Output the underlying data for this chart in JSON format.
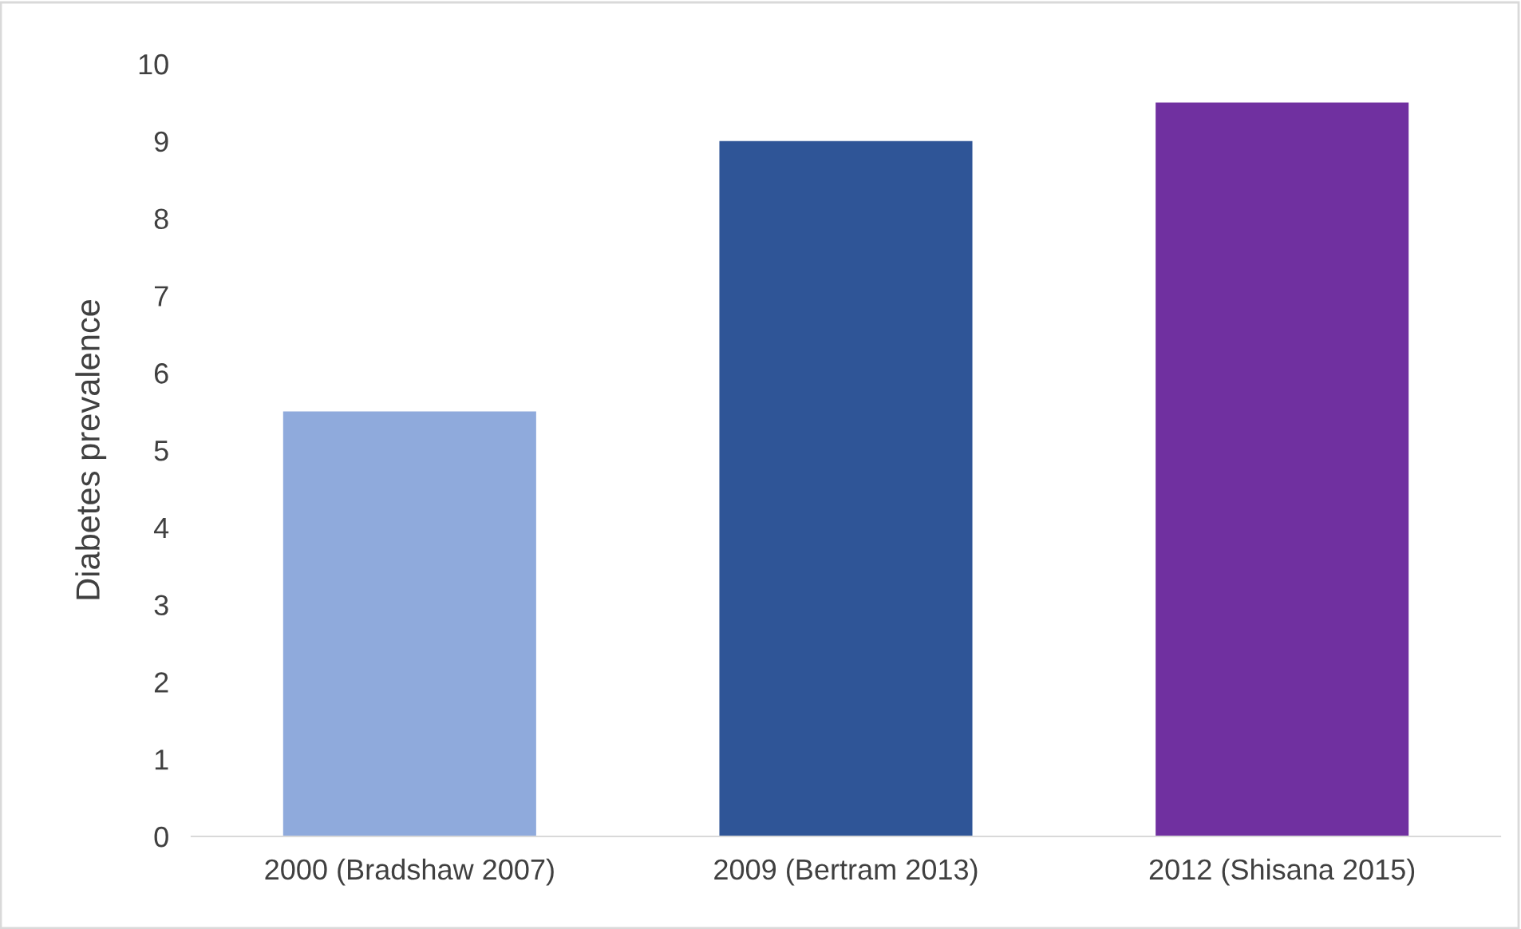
{
  "chart_data": {
    "type": "bar",
    "ylabel": "Diabetes prevalence",
    "categories": [
      "2000 (Bradshaw 2007)",
      "2009 (Bertram 2013)",
      "2012 (Shisana 2015)"
    ],
    "values": [
      5.5,
      9.0,
      9.5
    ],
    "colors": [
      "#8faadc",
      "#2f5597",
      "#7030a0"
    ],
    "ylim": [
      0,
      10
    ],
    "yticks": [
      0,
      1,
      2,
      3,
      4,
      5,
      6,
      7,
      8,
      9,
      10
    ],
    "grid": false,
    "legend": false
  }
}
